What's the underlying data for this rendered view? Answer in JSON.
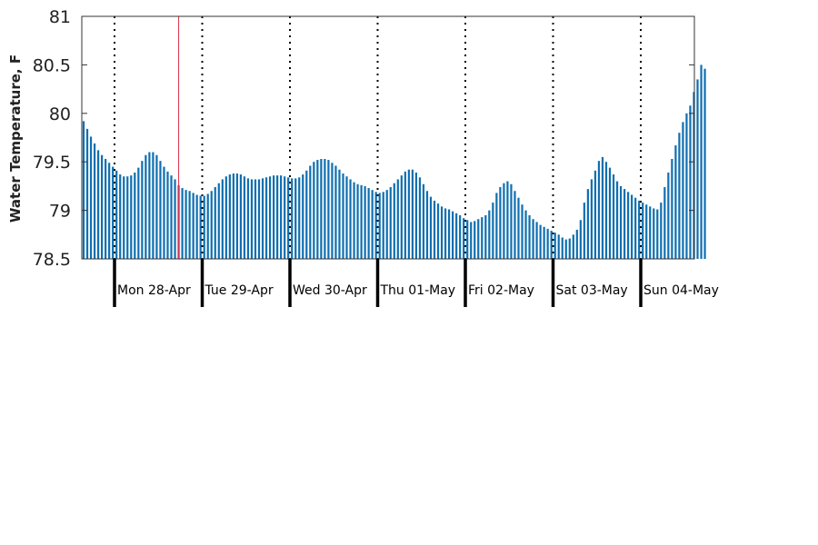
{
  "chart_data": {
    "type": "bar",
    "title": "",
    "xlabel": "",
    "ylabel": "Water Temperature, F",
    "ylim": [
      78.5,
      81
    ],
    "yticks": [
      "78.5",
      "79",
      "79.5",
      "80",
      "80.5",
      "81"
    ],
    "ytick_values": [
      78.5,
      79,
      79.5,
      80,
      80.5,
      81
    ],
    "day_labels": [
      "Mon 28-Apr",
      "Tue 29-Apr",
      "Wed 30-Apr",
      "Thu 01-May",
      "Fri 02-May",
      "Sat 03-May",
      "Sun 04-May"
    ],
    "bar_color": "#0f6fb0",
    "current_marker_color": "#e0304a",
    "current_marker_index": 26,
    "grid": "dotted vertical lines at day boundaries",
    "values": [
      79.92,
      79.84,
      79.76,
      79.69,
      79.62,
      79.57,
      79.53,
      79.49,
      79.45,
      79.41,
      79.37,
      79.35,
      79.35,
      79.36,
      79.39,
      79.44,
      79.51,
      79.57,
      79.6,
      79.6,
      79.57,
      79.51,
      79.45,
      79.4,
      79.36,
      79.32,
      79.26,
      79.23,
      79.21,
      79.2,
      79.18,
      79.16,
      79.15,
      79.15,
      79.17,
      79.2,
      79.24,
      79.28,
      79.32,
      79.35,
      79.37,
      79.38,
      79.38,
      79.37,
      79.35,
      79.33,
      79.32,
      79.32,
      79.32,
      79.33,
      79.34,
      79.35,
      79.36,
      79.36,
      79.36,
      79.35,
      79.34,
      79.33,
      79.33,
      79.34,
      79.37,
      79.41,
      79.46,
      79.5,
      79.52,
      79.53,
      79.53,
      79.52,
      79.49,
      79.46,
      79.42,
      79.38,
      79.35,
      79.32,
      79.29,
      79.27,
      79.26,
      79.25,
      79.23,
      79.21,
      79.19,
      79.18,
      79.19,
      79.21,
      79.24,
      79.28,
      79.32,
      79.36,
      79.4,
      79.42,
      79.42,
      79.39,
      79.34,
      79.27,
      79.2,
      79.14,
      79.1,
      79.07,
      79.04,
      79.02,
      79.01,
      78.99,
      78.97,
      78.95,
      78.92,
      78.9,
      78.88,
      78.89,
      78.91,
      78.93,
      78.95,
      79.0,
      79.08,
      79.18,
      79.24,
      79.28,
      79.3,
      79.27,
      79.2,
      79.13,
      79.06,
      79.0,
      78.95,
      78.91,
      78.88,
      78.85,
      78.83,
      78.81,
      78.79,
      78.77,
      78.75,
      78.72,
      78.7,
      78.71,
      78.75,
      78.8,
      78.9,
      79.08,
      79.22,
      79.32,
      79.41,
      79.51,
      79.55,
      79.5,
      79.44,
      79.37,
      79.3,
      79.25,
      79.22,
      79.19,
      79.16,
      79.13,
      79.1,
      79.08,
      79.06,
      79.04,
      79.02,
      79.01,
      79.08,
      79.24,
      79.39,
      79.53,
      79.67,
      79.8,
      79.91,
      80.0,
      80.08,
      80.22,
      80.35,
      80.5,
      80.46
    ]
  }
}
